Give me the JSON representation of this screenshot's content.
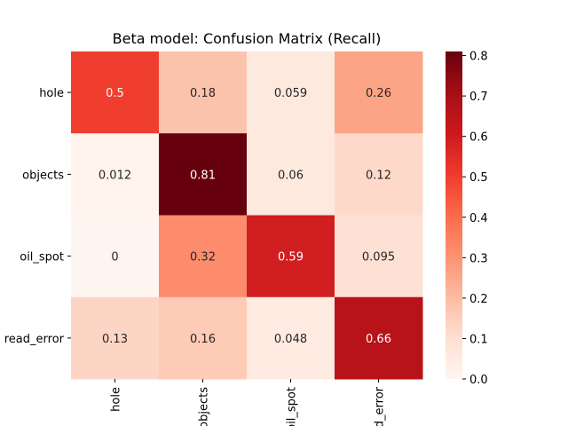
{
  "chart_data": {
    "type": "heatmap",
    "title": "Beta model: Confusion Matrix (Recall)",
    "xlabel": "",
    "ylabel": "",
    "row_labels": [
      "hole",
      "objects",
      "oil_spot",
      "read_error"
    ],
    "col_labels": [
      "hole",
      "objects",
      "oil_spot",
      "read_error"
    ],
    "values": [
      [
        0.5,
        0.18,
        0.059,
        0.26
      ],
      [
        0.012,
        0.81,
        0.06,
        0.12
      ],
      [
        0,
        0.32,
        0.59,
        0.095
      ],
      [
        0.13,
        0.16,
        0.048,
        0.66
      ]
    ],
    "cell_text": [
      [
        "0.5",
        "0.18",
        "0.059",
        "0.26"
      ],
      [
        "0.012",
        "0.81",
        "0.06",
        "0.12"
      ],
      [
        "0",
        "0.32",
        "0.59",
        "0.095"
      ],
      [
        "0.13",
        "0.16",
        "0.048",
        "0.66"
      ]
    ],
    "colormap": "Reds",
    "colormap_stops": [
      "#fff5f0",
      "#fee0d2",
      "#fcbba1",
      "#fc9272",
      "#fb6a4a",
      "#ef3b2c",
      "#cb181d",
      "#a50f15",
      "#67000d"
    ],
    "vmin": 0,
    "vmax": 0.81,
    "colorbar_ticks": [
      "0.0",
      "0.1",
      "0.2",
      "0.3",
      "0.4",
      "0.5",
      "0.6",
      "0.7",
      "0.8"
    ],
    "colorbar_tick_values": [
      0,
      0.1,
      0.2,
      0.3,
      0.4,
      0.5,
      0.6,
      0.7,
      0.8
    ],
    "grid": false
  }
}
